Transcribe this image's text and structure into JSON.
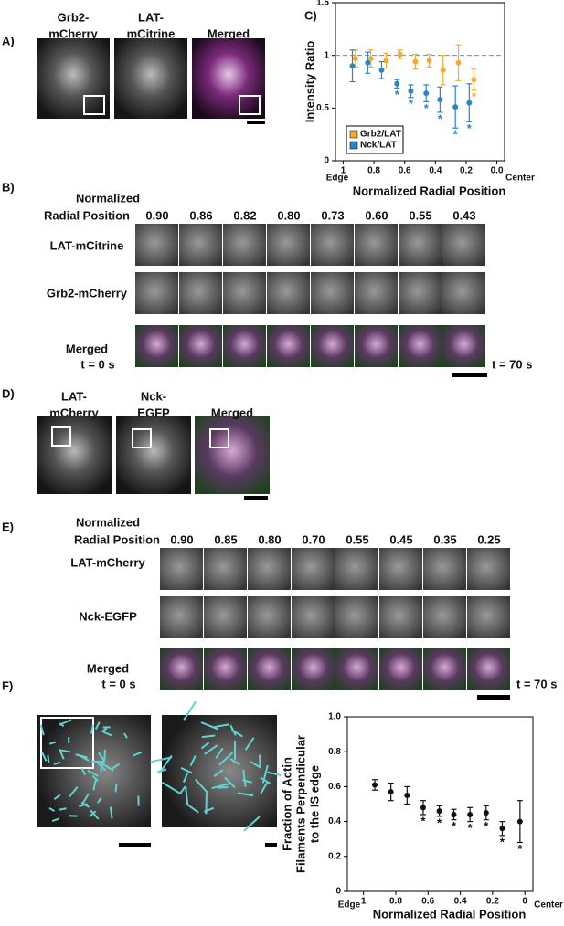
{
  "panel_a": {
    "label": "A)",
    "columns": [
      [
        "Grb2-",
        "mCherry"
      ],
      [
        "LAT-",
        "mCitrine"
      ],
      [
        "Merged"
      ]
    ]
  },
  "panel_b": {
    "label": "B)",
    "header": [
      "Normalized",
      "Radial Position"
    ],
    "positions": [
      "0.90",
      "0.86",
      "0.82",
      "0.80",
      "0.73",
      "0.60",
      "0.55",
      "0.43"
    ],
    "rows": [
      "LAT-mCitrine",
      "Grb2-mCherry",
      "Merged"
    ],
    "start": "t = 0 s",
    "end": "t = 70 s"
  },
  "panel_c": {
    "label": "C)"
  },
  "panel_d": {
    "label": "D)",
    "columns": [
      [
        "LAT-",
        "mCherry"
      ],
      [
        "Nck-",
        "EGFP"
      ],
      [
        "Merged"
      ]
    ]
  },
  "panel_e": {
    "label": "E)",
    "header": [
      "Normalized",
      "Radial Position"
    ],
    "positions": [
      "0.90",
      "0.85",
      "0.80",
      "0.70",
      "0.55",
      "0.45",
      "0.35",
      "0.25"
    ],
    "rows": [
      "LAT-mCherry",
      "Nck-EGFP",
      "Merged"
    ],
    "start": "t = 0 s",
    "end": "t = 70 s"
  },
  "panel_f": {
    "label": "F)"
  },
  "chart_data": [
    {
      "type": "errorbar",
      "y_label": [
        "Intensity Ratio"
      ],
      "x_label": "Normalized Radial Position",
      "x_left_label": "Edge",
      "x_right_label": "Center",
      "xlim": [
        1.05,
        -0.05
      ],
      "ylim": [
        0,
        1.5
      ],
      "xticks": [
        1,
        0.8,
        0.6,
        0.4,
        0.2,
        {
          "value": 0,
          "label": "0.0"
        }
      ],
      "yticks": [
        0,
        0.5,
        1,
        1.5
      ],
      "reference_line": 1,
      "legend": "lower left",
      "significance_label": "*",
      "series": [
        {
          "name": "Grb2/LAT",
          "color": "#f2ad2e",
          "x": [
            0.92,
            0.82,
            0.72,
            0.63,
            0.53,
            0.44,
            0.35,
            0.25,
            0.15
          ],
          "values": [
            0.97,
            0.97,
            0.95,
            1.01,
            0.94,
            0.95,
            0.86,
            0.93,
            0.77
          ],
          "errors": [
            0.08,
            0.08,
            0.07,
            0.04,
            0.07,
            0.06,
            0.14,
            0.17,
            0.1
          ],
          "significant": [
            false,
            false,
            false,
            false,
            false,
            false,
            false,
            false,
            true
          ]
        },
        {
          "name": "Nck/LAT",
          "color": "#2a86c4",
          "x": [
            0.94,
            0.84,
            0.75,
            0.65,
            0.56,
            0.46,
            0.37,
            0.27,
            0.18
          ],
          "values": [
            0.9,
            0.93,
            0.86,
            0.73,
            0.66,
            0.64,
            0.58,
            0.51,
            0.55
          ],
          "errors": [
            0.15,
            0.1,
            0.08,
            0.04,
            0.06,
            0.08,
            0.12,
            0.2,
            0.18
          ],
          "significant": [
            false,
            false,
            false,
            true,
            true,
            true,
            true,
            true,
            true
          ]
        }
      ]
    },
    {
      "type": "errorbar",
      "y_label": [
        "Fraction of Actin",
        "Filaments Perpendicular",
        "to the IS edge"
      ],
      "x_label": "Normalized Radial Position",
      "x_left_label": "Edge",
      "x_right_label": "Center",
      "xlim": [
        1.1,
        -0.05
      ],
      "ylim": [
        0,
        1
      ],
      "xticks": [
        1,
        0.8,
        0.6,
        0.4,
        0.2,
        0
      ],
      "yticks": [
        0,
        0.2,
        0.4,
        0.6,
        0.8,
        {
          "value": 1,
          "label": "1.0"
        }
      ],
      "significance_label": "*",
      "series": [
        {
          "color": "#111111",
          "x": [
            0.93,
            0.83,
            0.73,
            0.63,
            0.53,
            0.44,
            0.34,
            0.24,
            0.14,
            0.03
          ],
          "values": [
            0.61,
            0.57,
            0.55,
            0.48,
            0.46,
            0.44,
            0.44,
            0.45,
            0.36,
            0.4
          ],
          "errors": [
            0.03,
            0.05,
            0.05,
            0.04,
            0.03,
            0.03,
            0.04,
            0.04,
            0.04,
            0.12
          ],
          "significant": [
            false,
            false,
            false,
            true,
            true,
            true,
            true,
            true,
            true,
            true
          ]
        }
      ]
    }
  ]
}
